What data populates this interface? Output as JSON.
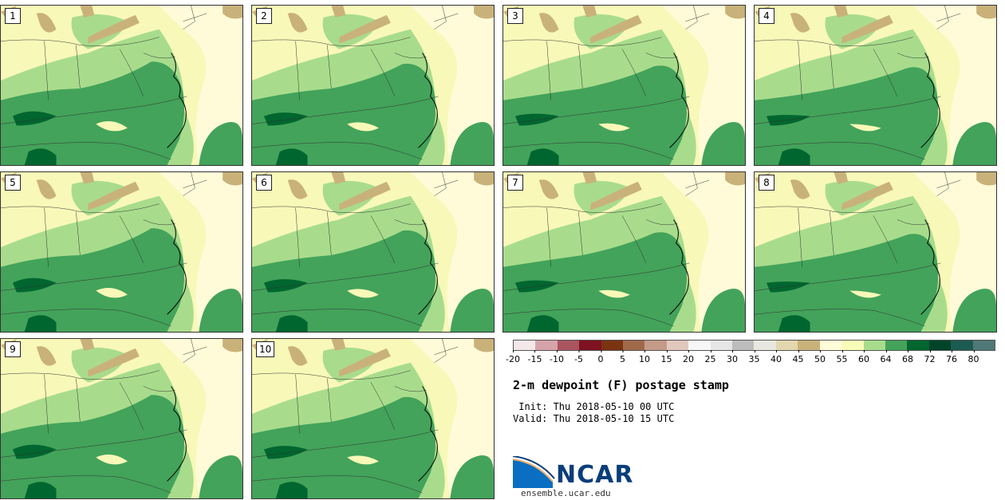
{
  "panels": [
    {
      "label": "1"
    },
    {
      "label": "2"
    },
    {
      "label": "3"
    },
    {
      "label": "4"
    },
    {
      "label": "5"
    },
    {
      "label": "6"
    },
    {
      "label": "7"
    },
    {
      "label": "8"
    },
    {
      "label": "9"
    },
    {
      "label": "10"
    }
  ],
  "colorbar": {
    "ticks": [
      "-20",
      "-15",
      "-10",
      "-5",
      "0",
      "5",
      "10",
      "15",
      "20",
      "25",
      "30",
      "35",
      "40",
      "45",
      "50",
      "55",
      "60",
      "64",
      "68",
      "72",
      "76",
      "80"
    ],
    "colors": [
      "#f5e8ea",
      "#d6a3aa",
      "#a95560",
      "#7e1220",
      "#7a3412",
      "#a0694a",
      "#c49a88",
      "#e2c7bd",
      "#f7f7f7",
      "#e6e6e6",
      "#bdbdbd",
      "#e8e8e0",
      "#e2d7ae",
      "#c9b27a",
      "#fffbd8",
      "#f9fcb8",
      "#a8dc8c",
      "#43a35a",
      "#00662f",
      "#00442a",
      "#1d5a52",
      "#507878"
    ]
  },
  "title": "2-m dewpoint (F) postage stamp",
  "init": " Init: Thu 2018-05-10 00 UTC",
  "valid": "Valid: Thu 2018-05-10 15 UTC",
  "logo": {
    "text": "NCAR",
    "site": "ensemble.ucar.edu"
  },
  "colors": {
    "dry": "#f8f8b8",
    "pale": "#fffbd8",
    "light_green": "#a8dc8c",
    "mid_green": "#43a35a",
    "dark_green": "#00662f",
    "tan": "#c9b27a"
  }
}
